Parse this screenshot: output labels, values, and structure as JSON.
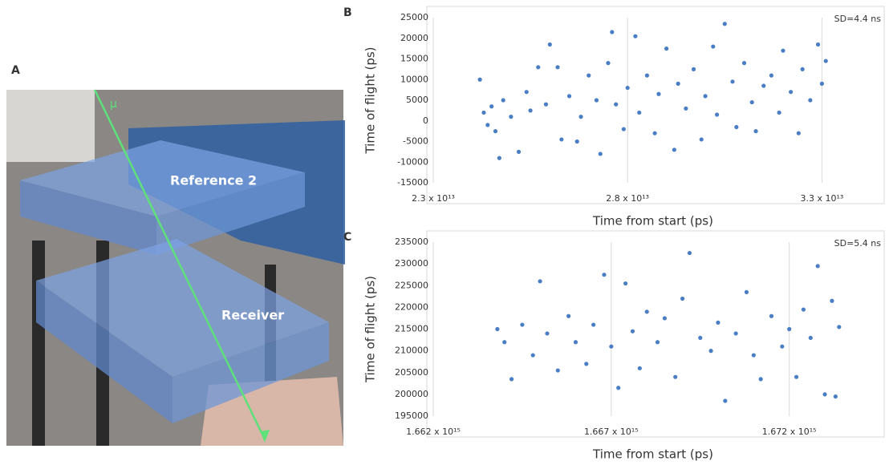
{
  "photo": {
    "panel_label": "A",
    "annotations": [
      "μ",
      "Reference 2",
      "Receiver"
    ]
  },
  "chart_data": [
    {
      "type": "scatter",
      "panel_label": "B",
      "annotation": "SD=4.4 ns",
      "x_label": "Time from start (ps)",
      "y_label": "Time of flight (ps)",
      "xlim": [
        23000000000000.0,
        33900000000000.0
      ],
      "ylim": [
        -15000,
        25000
      ],
      "xticks": [
        {
          "value": 23000000000000.0,
          "label": "2.3 x 10¹³"
        },
        {
          "value": 28000000000000.0,
          "label": "2.8 x 10¹³"
        },
        {
          "value": 33000000000000.0,
          "label": "3.3 x 10¹³"
        }
      ],
      "yticks": [
        -15000,
        -10000,
        -5000,
        0,
        5000,
        10000,
        15000,
        20000,
        25000
      ],
      "grid": "x",
      "color": "#4a7ec4",
      "x": [
        24200000000000.0,
        24300000000000.0,
        24400000000000.0,
        24500000000000.0,
        24600000000000.0,
        24700000000000.0,
        24800000000000.0,
        25000000000000.0,
        25200000000000.0,
        25400000000000.0,
        25500000000000.0,
        25700000000000.0,
        25900000000000.0,
        26000000000000.0,
        26200000000000.0,
        26300000000000.0,
        26500000000000.0,
        26700000000000.0,
        26800000000000.0,
        27000000000000.0,
        27200000000000.0,
        27300000000000.0,
        27500000000000.0,
        27600000000000.0,
        27700000000000.0,
        27900000000000.0,
        28000000000000.0,
        28200000000000.0,
        28300000000000.0,
        28500000000000.0,
        28700000000000.0,
        28800000000000.0,
        29000000000000.0,
        29200000000000.0,
        29300000000000.0,
        29500000000000.0,
        29700000000000.0,
        29900000000000.0,
        30000000000000.0,
        30200000000000.0,
        30300000000000.0,
        30500000000000.0,
        30700000000000.0,
        30800000000000.0,
        31000000000000.0,
        31200000000000.0,
        31300000000000.0,
        31500000000000.0,
        31700000000000.0,
        31900000000000.0,
        32000000000000.0,
        32200000000000.0,
        32400000000000.0,
        32500000000000.0,
        32700000000000.0,
        32900000000000.0,
        33000000000000.0,
        33100000000000.0
      ],
      "values": [
        10000,
        2000,
        -1000,
        3500,
        -2500,
        -9000,
        5000,
        1000,
        -7500,
        7000,
        2500,
        13000,
        4000,
        18500,
        13000,
        -4500,
        6000,
        -5000,
        1000,
        11000,
        5000,
        -8000,
        14000,
        21500,
        4000,
        -2000,
        8000,
        20500,
        2000,
        11000,
        -3000,
        6500,
        17500,
        -7000,
        9000,
        3000,
        12500,
        -4500,
        6000,
        18000,
        1500,
        23500,
        9500,
        -1500,
        14000,
        4500,
        -2500,
        8500,
        11000,
        2000,
        17000,
        7000,
        -3000,
        12500,
        5000,
        18500,
        9000,
        14500
      ]
    },
    {
      "type": "scatter",
      "panel_label": "C",
      "annotation": "SD=5.4 ns",
      "x_label": "Time from start (ps)",
      "y_label": "Time of flight (ps)",
      "xlim": [
        1662000000000000.0,
        1673900000000000.0
      ],
      "ylim": [
        195000,
        235000
      ],
      "xticks": [
        {
          "value": 1662000000000000.0,
          "label": "1.662 x 10¹⁵"
        },
        {
          "value": 1667000000000000.0,
          "label": "1.667 x 10¹⁵"
        },
        {
          "value": 1672000000000000.0,
          "label": "1.672 x 10¹⁵"
        }
      ],
      "yticks": [
        195000,
        200000,
        205000,
        210000,
        215000,
        220000,
        225000,
        230000,
        235000
      ],
      "grid": "x",
      "color": "#4a7ec4",
      "x": [
        1663800000000000.0,
        1664000000000000.0,
        1664200000000000.0,
        1664500000000000.0,
        1664800000000000.0,
        1665000000000000.0,
        1665200000000000.0,
        1665500000000000.0,
        1665800000000000.0,
        1666000000000000.0,
        1666300000000000.0,
        1666500000000000.0,
        1666800000000000.0,
        1667000000000000.0,
        1667200000000000.0,
        1667400000000000.0,
        1667600000000000.0,
        1667800000000000.0,
        1668000000000000.0,
        1668300000000000.0,
        1668500000000000.0,
        1668800000000000.0,
        1669000000000000.0,
        1669200000000000.0,
        1669500000000000.0,
        1669800000000000.0,
        1670000000000000.0,
        1670200000000000.0,
        1670500000000000.0,
        1670800000000000.0,
        1671000000000000.0,
        1671200000000000.0,
        1671500000000000.0,
        1671800000000000.0,
        1672000000000000.0,
        1672200000000000.0,
        1672400000000000.0,
        1672600000000000.0,
        1672800000000000.0,
        1673000000000000.0,
        1673200000000000.0,
        1673300000000000.0,
        1673400000000000.0
      ],
      "values": [
        215000,
        212000,
        203500,
        216000,
        209000,
        226000,
        214000,
        205500,
        218000,
        212000,
        207000,
        216000,
        227500,
        211000,
        201500,
        225500,
        214500,
        206000,
        219000,
        212000,
        217500,
        204000,
        222000,
        232500,
        213000,
        210000,
        216500,
        198500,
        214000,
        223500,
        209000,
        203500,
        218000,
        211000,
        215000,
        204000,
        219500,
        213000,
        229500,
        200000,
        221500,
        199500,
        215500
      ]
    }
  ]
}
